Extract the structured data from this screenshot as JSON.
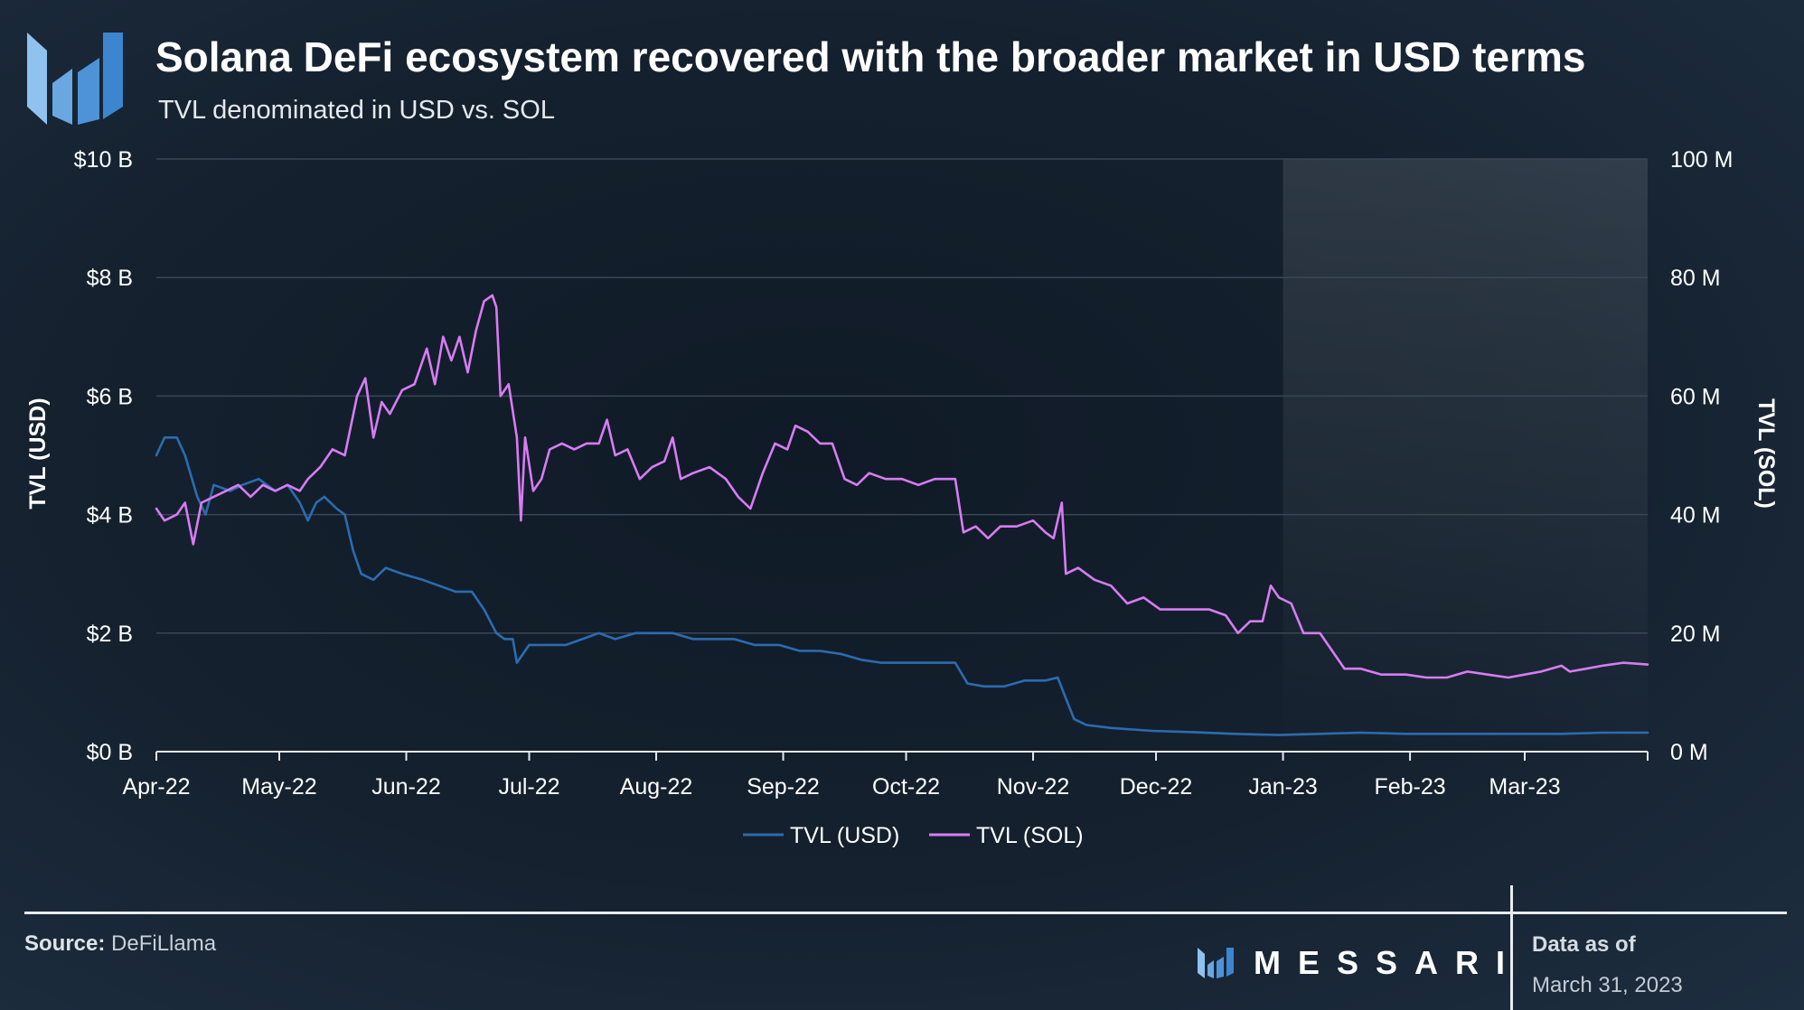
{
  "header": {
    "title": "Solana DeFi ecosystem recovered with the broader market in USD terms",
    "subtitle": "TVL denominated in USD vs. SOL"
  },
  "footer": {
    "source_label": "Source:",
    "source_value": "DeFiLlama",
    "brand": "MESSARI",
    "as_of_label": "Data as of",
    "as_of_date": "March 31, 2023"
  },
  "colors": {
    "usd_line": "#2b6cb0",
    "sol_line": "#d77cf2",
    "grid": "#3a4656",
    "axis": "#e6eaee"
  },
  "chart_data": {
    "type": "line",
    "title": "Solana DeFi ecosystem recovered with the broader market in USD terms",
    "subtitle": "TVL denominated in USD vs. SOL",
    "x_ticks": [
      "Apr-22",
      "May-22",
      "Jun-22",
      "Jul-22",
      "Aug-22",
      "Sep-22",
      "Oct-22",
      "Nov-22",
      "Dec-22",
      "Jan-23",
      "Feb-23",
      "Mar-23"
    ],
    "x_range": [
      "2022-04-01",
      "2023-03-31"
    ],
    "y_left": {
      "label": "TVL (USD)",
      "ticks": [
        "$0 B",
        "$2 B",
        "$4 B",
        "$6 B",
        "$8 B",
        "$10 B"
      ],
      "range": [
        0,
        10
      ]
    },
    "y_right": {
      "label": "TVL (SOL)",
      "ticks": [
        "0 M",
        "20 M",
        "40 M",
        "60 M",
        "80 M",
        "100 M"
      ],
      "range": [
        0,
        100
      ]
    },
    "grid": true,
    "legend_position": "bottom-center",
    "series": [
      {
        "name": "TVL (USD)",
        "axis": "left",
        "points": [
          [
            "2022-04-01",
            5.0
          ],
          [
            "2022-04-03",
            5.3
          ],
          [
            "2022-04-06",
            5.3
          ],
          [
            "2022-04-08",
            5.0
          ],
          [
            "2022-04-11",
            4.3
          ],
          [
            "2022-04-13",
            4.0
          ],
          [
            "2022-04-15",
            4.5
          ],
          [
            "2022-04-19",
            4.4
          ],
          [
            "2022-04-22",
            4.5
          ],
          [
            "2022-04-26",
            4.6
          ],
          [
            "2022-04-30",
            4.4
          ],
          [
            "2022-05-03",
            4.5
          ],
          [
            "2022-05-06",
            4.2
          ],
          [
            "2022-05-08",
            3.9
          ],
          [
            "2022-05-10",
            4.2
          ],
          [
            "2022-05-12",
            4.3
          ],
          [
            "2022-05-15",
            4.1
          ],
          [
            "2022-05-17",
            4.0
          ],
          [
            "2022-05-19",
            3.4
          ],
          [
            "2022-05-21",
            3.0
          ],
          [
            "2022-05-24",
            2.9
          ],
          [
            "2022-05-27",
            3.1
          ],
          [
            "2022-05-31",
            3.0
          ],
          [
            "2022-06-05",
            2.9
          ],
          [
            "2022-06-09",
            2.8
          ],
          [
            "2022-06-13",
            2.7
          ],
          [
            "2022-06-17",
            2.7
          ],
          [
            "2022-06-20",
            2.4
          ],
          [
            "2022-06-23",
            2.0
          ],
          [
            "2022-06-25",
            1.9
          ],
          [
            "2022-06-27",
            1.9
          ],
          [
            "2022-06-28",
            1.5
          ],
          [
            "2022-07-01",
            1.8
          ],
          [
            "2022-07-06",
            1.8
          ],
          [
            "2022-07-10",
            1.8
          ],
          [
            "2022-07-14",
            1.9
          ],
          [
            "2022-07-18",
            2.0
          ],
          [
            "2022-07-22",
            1.9
          ],
          [
            "2022-07-27",
            2.0
          ],
          [
            "2022-07-31",
            2.0
          ],
          [
            "2022-08-05",
            2.0
          ],
          [
            "2022-08-10",
            1.9
          ],
          [
            "2022-08-15",
            1.9
          ],
          [
            "2022-08-20",
            1.9
          ],
          [
            "2022-08-25",
            1.8
          ],
          [
            "2022-08-31",
            1.8
          ],
          [
            "2022-09-05",
            1.7
          ],
          [
            "2022-09-10",
            1.7
          ],
          [
            "2022-09-15",
            1.65
          ],
          [
            "2022-09-20",
            1.55
          ],
          [
            "2022-09-25",
            1.5
          ],
          [
            "2022-09-30",
            1.5
          ],
          [
            "2022-10-05",
            1.5
          ],
          [
            "2022-10-10",
            1.5
          ],
          [
            "2022-10-13",
            1.5
          ],
          [
            "2022-10-16",
            1.15
          ],
          [
            "2022-10-20",
            1.1
          ],
          [
            "2022-10-25",
            1.1
          ],
          [
            "2022-10-30",
            1.2
          ],
          [
            "2022-11-04",
            1.2
          ],
          [
            "2022-11-07",
            1.25
          ],
          [
            "2022-11-09",
            0.9
          ],
          [
            "2022-11-11",
            0.55
          ],
          [
            "2022-11-14",
            0.45
          ],
          [
            "2022-11-20",
            0.4
          ],
          [
            "2022-11-30",
            0.35
          ],
          [
            "2022-12-10",
            0.33
          ],
          [
            "2022-12-20",
            0.3
          ],
          [
            "2022-12-31",
            0.28
          ],
          [
            "2023-01-10",
            0.3
          ],
          [
            "2023-01-20",
            0.32
          ],
          [
            "2023-01-31",
            0.3
          ],
          [
            "2023-02-10",
            0.3
          ],
          [
            "2023-02-20",
            0.3
          ],
          [
            "2023-02-28",
            0.3
          ],
          [
            "2023-03-10",
            0.3
          ],
          [
            "2023-03-20",
            0.32
          ],
          [
            "2023-03-31",
            0.32
          ]
        ]
      },
      {
        "name": "TVL (SOL)",
        "axis": "right",
        "points": [
          [
            "2022-04-01",
            41
          ],
          [
            "2022-04-03",
            39
          ],
          [
            "2022-04-06",
            40
          ],
          [
            "2022-04-08",
            42
          ],
          [
            "2022-04-10",
            35
          ],
          [
            "2022-04-12",
            42
          ],
          [
            "2022-04-15",
            43
          ],
          [
            "2022-04-18",
            44
          ],
          [
            "2022-04-21",
            45
          ],
          [
            "2022-04-24",
            43
          ],
          [
            "2022-04-27",
            45
          ],
          [
            "2022-04-30",
            44
          ],
          [
            "2022-05-03",
            45
          ],
          [
            "2022-05-06",
            44
          ],
          [
            "2022-05-08",
            46
          ],
          [
            "2022-05-11",
            48
          ],
          [
            "2022-05-14",
            51
          ],
          [
            "2022-05-17",
            50
          ],
          [
            "2022-05-20",
            60
          ],
          [
            "2022-05-22",
            63
          ],
          [
            "2022-05-24",
            53
          ],
          [
            "2022-05-26",
            59
          ],
          [
            "2022-05-28",
            57
          ],
          [
            "2022-05-31",
            61
          ],
          [
            "2022-06-03",
            62
          ],
          [
            "2022-06-06",
            68
          ],
          [
            "2022-06-08",
            62
          ],
          [
            "2022-06-10",
            70
          ],
          [
            "2022-06-12",
            66
          ],
          [
            "2022-06-14",
            70
          ],
          [
            "2022-06-16",
            64
          ],
          [
            "2022-06-18",
            71
          ],
          [
            "2022-06-20",
            76
          ],
          [
            "2022-06-22",
            77
          ],
          [
            "2022-06-23",
            75
          ],
          [
            "2022-06-24",
            60
          ],
          [
            "2022-06-26",
            62
          ],
          [
            "2022-06-28",
            53
          ],
          [
            "2022-06-29",
            39
          ],
          [
            "2022-06-30",
            53
          ],
          [
            "2022-07-02",
            44
          ],
          [
            "2022-07-04",
            46
          ],
          [
            "2022-07-06",
            51
          ],
          [
            "2022-07-09",
            52
          ],
          [
            "2022-07-12",
            51
          ],
          [
            "2022-07-15",
            52
          ],
          [
            "2022-07-18",
            52
          ],
          [
            "2022-07-20",
            56
          ],
          [
            "2022-07-22",
            50
          ],
          [
            "2022-07-25",
            51
          ],
          [
            "2022-07-28",
            46
          ],
          [
            "2022-07-31",
            48
          ],
          [
            "2022-08-03",
            49
          ],
          [
            "2022-08-05",
            53
          ],
          [
            "2022-08-07",
            46
          ],
          [
            "2022-08-10",
            47
          ],
          [
            "2022-08-14",
            48
          ],
          [
            "2022-08-18",
            46
          ],
          [
            "2022-08-21",
            43
          ],
          [
            "2022-08-24",
            41
          ],
          [
            "2022-08-27",
            47
          ],
          [
            "2022-08-30",
            52
          ],
          [
            "2022-09-02",
            51
          ],
          [
            "2022-09-04",
            55
          ],
          [
            "2022-09-07",
            54
          ],
          [
            "2022-09-10",
            52
          ],
          [
            "2022-09-13",
            52
          ],
          [
            "2022-09-16",
            46
          ],
          [
            "2022-09-19",
            45
          ],
          [
            "2022-09-22",
            47
          ],
          [
            "2022-09-26",
            46
          ],
          [
            "2022-09-30",
            46
          ],
          [
            "2022-10-04",
            45
          ],
          [
            "2022-10-08",
            46
          ],
          [
            "2022-10-13",
            46
          ],
          [
            "2022-10-15",
            37
          ],
          [
            "2022-10-18",
            38
          ],
          [
            "2022-10-21",
            36
          ],
          [
            "2022-10-24",
            38
          ],
          [
            "2022-10-28",
            38
          ],
          [
            "2022-11-01",
            39
          ],
          [
            "2022-11-04",
            37
          ],
          [
            "2022-11-06",
            36
          ],
          [
            "2022-11-08",
            42
          ],
          [
            "2022-11-09",
            30
          ],
          [
            "2022-11-12",
            31
          ],
          [
            "2022-11-16",
            29
          ],
          [
            "2022-11-20",
            28
          ],
          [
            "2022-11-24",
            25
          ],
          [
            "2022-11-28",
            26
          ],
          [
            "2022-12-02",
            24
          ],
          [
            "2022-12-06",
            24
          ],
          [
            "2022-12-10",
            24
          ],
          [
            "2022-12-14",
            24
          ],
          [
            "2022-12-18",
            23
          ],
          [
            "2022-12-21",
            20
          ],
          [
            "2022-12-24",
            22
          ],
          [
            "2022-12-27",
            22
          ],
          [
            "2022-12-29",
            28
          ],
          [
            "2022-12-31",
            26
          ],
          [
            "2023-01-03",
            25
          ],
          [
            "2023-01-06",
            20
          ],
          [
            "2023-01-10",
            20
          ],
          [
            "2023-01-13",
            17
          ],
          [
            "2023-01-16",
            14
          ],
          [
            "2023-01-20",
            14
          ],
          [
            "2023-01-25",
            13
          ],
          [
            "2023-01-31",
            13
          ],
          [
            "2023-02-05",
            12.5
          ],
          [
            "2023-02-10",
            12.5
          ],
          [
            "2023-02-15",
            13.5
          ],
          [
            "2023-02-20",
            13
          ],
          [
            "2023-02-25",
            12.5
          ],
          [
            "2023-03-01",
            13
          ],
          [
            "2023-03-05",
            13.5
          ],
          [
            "2023-03-10",
            14.5
          ],
          [
            "2023-03-12",
            13.5
          ],
          [
            "2023-03-16",
            14
          ],
          [
            "2023-03-20",
            14.5
          ],
          [
            "2023-03-25",
            15
          ],
          [
            "2023-03-31",
            14.7
          ]
        ]
      }
    ],
    "highlight_region": [
      "2023-01-01",
      "2023-03-31"
    ]
  }
}
